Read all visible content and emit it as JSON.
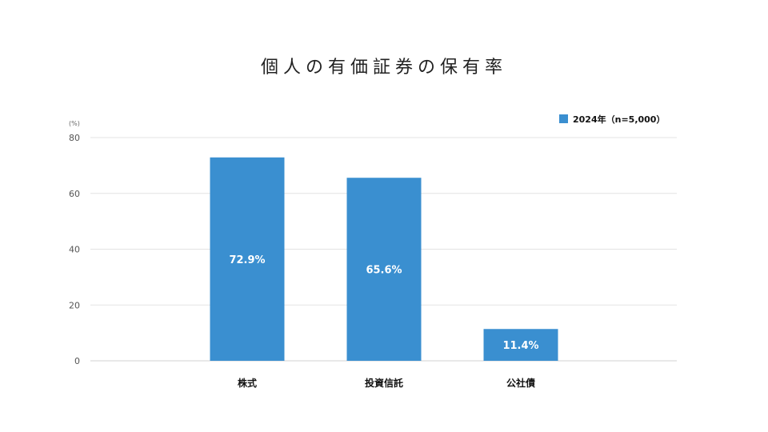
{
  "chart_data": {
    "type": "bar",
    "title": "個人の有価証券の保有率",
    "unit_label": "(%)",
    "categories": [
      "株式",
      "投資信託",
      "公社債"
    ],
    "series": [
      {
        "name": "2024年（n=5,000）",
        "values": [
          72.9,
          65.6,
          11.4
        ],
        "labels": [
          "72.9%",
          "65.6%",
          "11.4%"
        ]
      }
    ],
    "ylim": [
      0,
      80
    ],
    "yticks": [
      0,
      20,
      40,
      60,
      80
    ],
    "grid": true,
    "legend_position": "top-right",
    "colors": {
      "bar": "#3a8fd0",
      "grid": "#e3e3e3",
      "label": "#ffffff"
    }
  }
}
